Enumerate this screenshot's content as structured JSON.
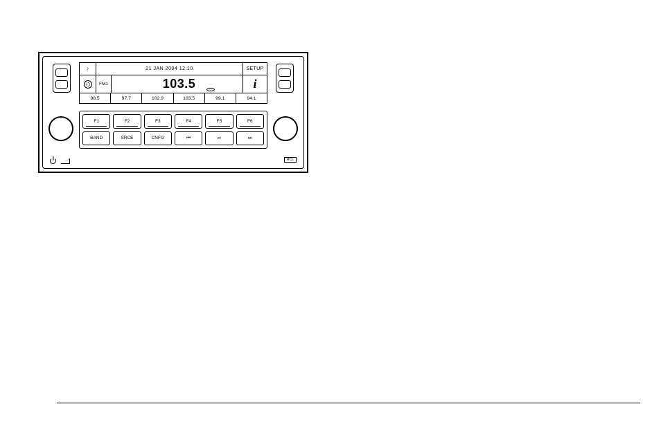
{
  "lcd": {
    "date_time": "21 JAN 2004 12:10",
    "setup_label": "SETUP",
    "band": "FM1",
    "frequency": "103.5",
    "info_label": "i",
    "presets": [
      "98.5",
      "97.7",
      "102.9",
      "103.5",
      "99.1",
      "94.1"
    ]
  },
  "buttons": {
    "row1": [
      "F1",
      "F2",
      "F3",
      "F4",
      "F5",
      "F6"
    ],
    "row2": [
      "BAND",
      "SRCE",
      "CNFG",
      "⏮",
      "⏯",
      "⏭"
    ]
  },
  "br_box_label": "RCL",
  "colors": {
    "stroke": "#000000",
    "background": "#ffffff"
  },
  "layout": {
    "unit_width": 390,
    "unit_height": 175,
    "knob_diameter": 36
  }
}
